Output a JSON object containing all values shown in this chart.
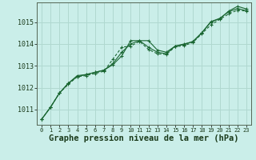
{
  "background_color": "#caeee9",
  "grid_color": "#b0d8d0",
  "line_color": "#1a6632",
  "xlabel": "Graphe pression niveau de la mer (hPa)",
  "xlabel_fontsize": 7.5,
  "ylabel_ticks": [
    1011,
    1012,
    1013,
    1014,
    1015
  ],
  "xticks": [
    0,
    1,
    2,
    3,
    4,
    5,
    6,
    7,
    8,
    9,
    10,
    11,
    12,
    13,
    14,
    15,
    16,
    17,
    18,
    19,
    20,
    21,
    22,
    23
  ],
  "ylim": [
    1010.3,
    1015.9
  ],
  "xlim": [
    -0.5,
    23.5
  ],
  "series1_x": [
    0,
    1,
    2,
    3,
    4,
    5,
    6,
    7,
    8,
    9,
    10,
    11,
    12,
    13,
    14,
    15,
    16,
    17,
    18,
    19,
    20,
    21,
    22,
    23
  ],
  "series1_y": [
    1010.55,
    1011.1,
    1011.75,
    1012.2,
    1012.55,
    1012.6,
    1012.7,
    1012.8,
    1013.05,
    1013.45,
    1014.15,
    1014.15,
    1014.15,
    1013.72,
    1013.62,
    1013.9,
    1014.0,
    1014.1,
    1014.5,
    1015.0,
    1015.15,
    1015.5,
    1015.72,
    1015.6
  ],
  "series2_x": [
    0,
    1,
    2,
    3,
    4,
    5,
    6,
    7,
    8,
    9,
    10,
    11,
    12,
    13,
    14,
    15,
    16,
    17,
    18,
    19,
    20,
    21,
    22,
    23
  ],
  "series2_y": [
    1010.55,
    1011.1,
    1011.75,
    1012.15,
    1012.5,
    1012.55,
    1012.65,
    1012.75,
    1013.3,
    1013.85,
    1013.9,
    1014.12,
    1013.75,
    1013.55,
    1013.52,
    1013.87,
    1013.92,
    1014.07,
    1014.47,
    1014.87,
    1015.12,
    1015.37,
    1015.55,
    1015.5
  ],
  "series3_x": [
    0,
    1,
    2,
    3,
    4,
    5,
    6,
    7,
    8,
    9,
    10,
    11,
    12,
    13,
    14,
    15,
    16,
    17,
    18,
    19,
    20,
    21,
    22,
    23
  ],
  "series3_y": [
    1010.55,
    1011.1,
    1011.75,
    1012.2,
    1012.5,
    1012.6,
    1012.7,
    1012.8,
    1013.1,
    1013.62,
    1014.0,
    1014.15,
    1013.85,
    1013.62,
    1013.55,
    1013.9,
    1013.97,
    1014.12,
    1014.52,
    1015.02,
    1015.17,
    1015.47,
    1015.62,
    1015.52
  ]
}
